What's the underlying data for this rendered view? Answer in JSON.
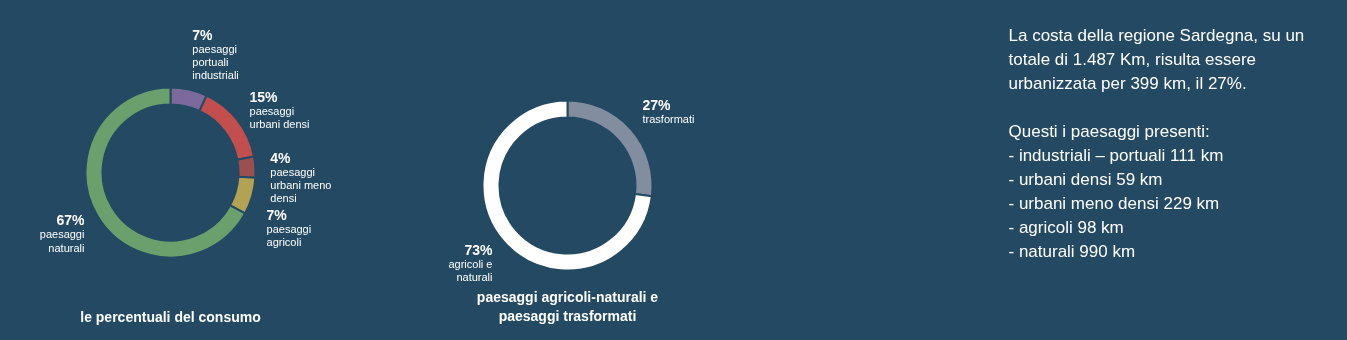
{
  "chart_data": [
    {
      "type": "donut",
      "title": "le percentuali del consumo",
      "categories": [
        "paesaggi portuali industriali",
        "paesaggi urbani densi",
        "paesaggi urbani meno densi",
        "paesaggi agricoli",
        "paesaggi naturali"
      ],
      "values": [
        7,
        15,
        4,
        7,
        67
      ],
      "value_labels": [
        "7%",
        "15%",
        "4%",
        "7%",
        "67%"
      ],
      "colors": [
        "#7b6a9b",
        "#c24f4e",
        "#9c4f4f",
        "#b3a253",
        "#6aa06c"
      ]
    },
    {
      "type": "donut",
      "title": "paesaggi agricoli-naturali e paesaggi trasformati",
      "categories": [
        "trasformati",
        "agricoli e naturali"
      ],
      "values": [
        27,
        73
      ],
      "value_labels": [
        "27%",
        "73%"
      ],
      "colors": [
        "#838da0",
        "#ffffff"
      ]
    },
    {
      "type": "other",
      "annotations": [
        "La costa della regione Sardegna, su un totale di 1.487 Km, risulta essere urbanizzata per 399 km, il 27%.",
        "Questi i paesaggi presenti:",
        "- industriali – portuali 111 km",
        "- urbani densi 59 km",
        "- urbani meno densi 229 km",
        "- agricoli 98 km",
        "- naturali 990 km"
      ]
    }
  ]
}
